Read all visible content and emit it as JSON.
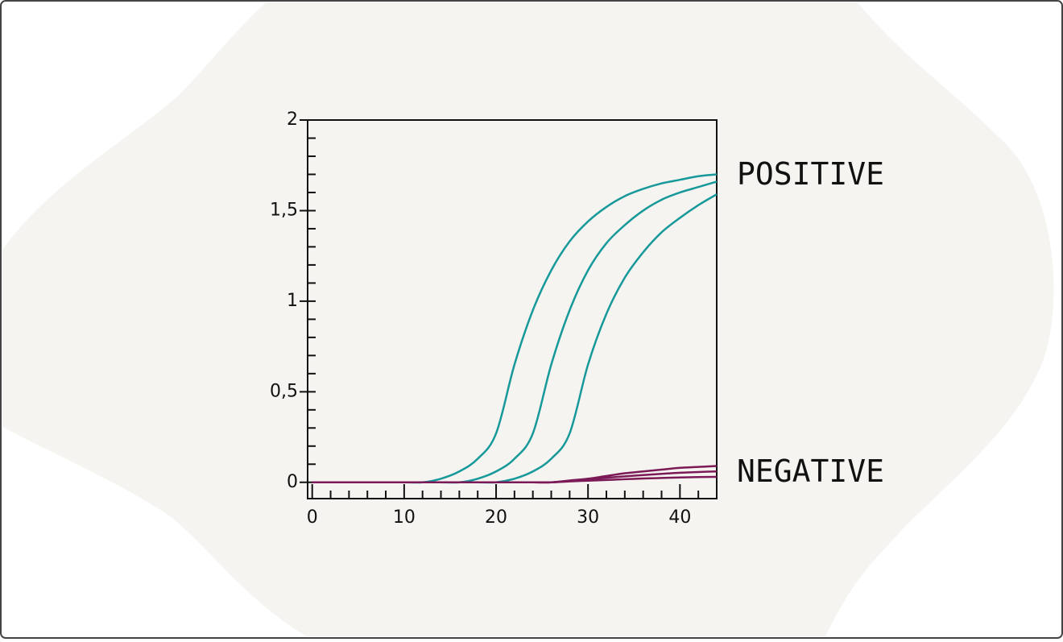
{
  "chart_data": {
    "type": "line",
    "x": [
      0,
      2,
      4,
      6,
      8,
      10,
      12,
      14,
      16,
      18,
      20,
      22,
      24,
      26,
      28,
      30,
      32,
      34,
      36,
      38,
      40,
      42,
      44
    ],
    "series": [
      {
        "color": "#17999a",
        "values": [
          0,
          0,
          0,
          0,
          0,
          0,
          0,
          0.02,
          0.06,
          0.13,
          0.27,
          0.65,
          0.95,
          1.17,
          1.33,
          1.44,
          1.52,
          1.58,
          1.62,
          1.65,
          1.67,
          1.69,
          1.7
        ]
      },
      {
        "color": "#17999a",
        "values": [
          0,
          0,
          0,
          0,
          0,
          0,
          0,
          0,
          0,
          0.02,
          0.06,
          0.13,
          0.27,
          0.65,
          0.95,
          1.17,
          1.32,
          1.42,
          1.5,
          1.56,
          1.6,
          1.63,
          1.66
        ]
      },
      {
        "color": "#17999a",
        "values": [
          0,
          0,
          0,
          0,
          0,
          0,
          0,
          0,
          0,
          0,
          0,
          0.02,
          0.06,
          0.13,
          0.27,
          0.65,
          0.93,
          1.13,
          1.27,
          1.38,
          1.46,
          1.53,
          1.59
        ]
      },
      {
        "color": "#7b1a56",
        "values": [
          0,
          0,
          0,
          0,
          0,
          0,
          0,
          0,
          0,
          0,
          0,
          0,
          0,
          0,
          0.01,
          0.02,
          0.035,
          0.05,
          0.06,
          0.07,
          0.08,
          0.085,
          0.09
        ]
      },
      {
        "color": "#7b1a56",
        "values": [
          0,
          0,
          0,
          0,
          0,
          0,
          0,
          0,
          0,
          0,
          0,
          0,
          0,
          0,
          0.008,
          0.016,
          0.025,
          0.033,
          0.04,
          0.047,
          0.053,
          0.057,
          0.06
        ]
      },
      {
        "color": "#7b1a56",
        "values": [
          0,
          0,
          0,
          0,
          0,
          0,
          0,
          0,
          0,
          0,
          0,
          0,
          0,
          0,
          0.005,
          0.009,
          0.013,
          0.017,
          0.021,
          0.024,
          0.027,
          0.029,
          0.03
        ]
      }
    ],
    "xlim": [
      -0.5,
      44
    ],
    "ylim": [
      -0.09,
      2
    ],
    "xticks": [
      0,
      10,
      20,
      30,
      40
    ],
    "xminorticks": [
      2,
      4,
      6,
      8,
      12,
      14,
      16,
      18,
      22,
      24,
      26,
      28,
      32,
      34,
      36,
      38,
      42
    ],
    "yticks": [
      0,
      {
        "value": 0.5,
        "label": "0,5"
      },
      1,
      {
        "value": 1.5,
        "label": "1,5"
      },
      2
    ],
    "yminorticks": [
      0.1,
      0.2,
      0.3,
      0.4,
      0.6,
      0.7,
      0.8,
      0.9,
      1.1,
      1.2,
      1.3,
      1.4,
      1.6,
      1.7,
      1.8,
      1.9
    ],
    "annotations": [
      {
        "text": "POSITIVE",
        "y": 1.7
      },
      {
        "text": "NEGATIVE",
        "y": 0.06
      }
    ]
  }
}
